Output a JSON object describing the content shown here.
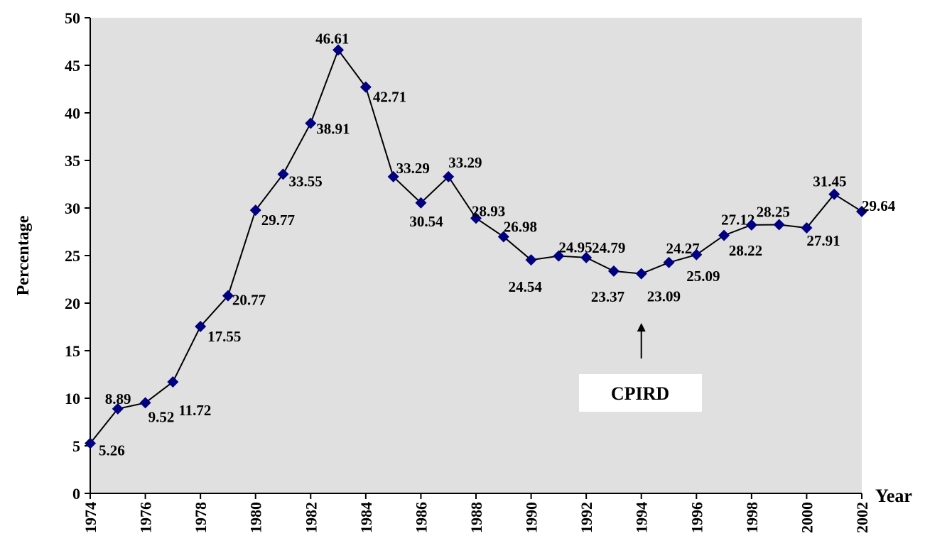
{
  "chart_data": {
    "type": "line",
    "x": [
      1974,
      1975,
      1976,
      1977,
      1978,
      1979,
      1980,
      1981,
      1982,
      1983,
      1984,
      1985,
      1986,
      1987,
      1988,
      1989,
      1990,
      1991,
      1992,
      1993,
      1994,
      1995,
      1996,
      1997,
      1998,
      1999,
      2000,
      2001,
      2002
    ],
    "values": [
      5.26,
      8.89,
      9.52,
      11.72,
      17.55,
      20.77,
      29.77,
      33.55,
      38.91,
      46.61,
      42.71,
      33.29,
      30.54,
      33.29,
      28.93,
      26.98,
      24.54,
      24.95,
      24.79,
      23.37,
      23.09,
      24.27,
      25.09,
      27.12,
      28.22,
      28.25,
      27.91,
      31.45,
      29.64
    ],
    "color": "#000080",
    "xlabel": "Year",
    "ylabel": "Percentage",
    "xlim": [
      1974,
      2002
    ],
    "xticks": [
      1974,
      1976,
      1978,
      1980,
      1982,
      1984,
      1986,
      1988,
      1990,
      1992,
      1994,
      1996,
      1998,
      2000,
      2002
    ],
    "ylim": [
      0,
      50
    ],
    "yticks": [
      0,
      5,
      10,
      15,
      20,
      25,
      30,
      35,
      40,
      45,
      50
    ],
    "annotation": "CPIRD",
    "annotation_x": 1994
  }
}
